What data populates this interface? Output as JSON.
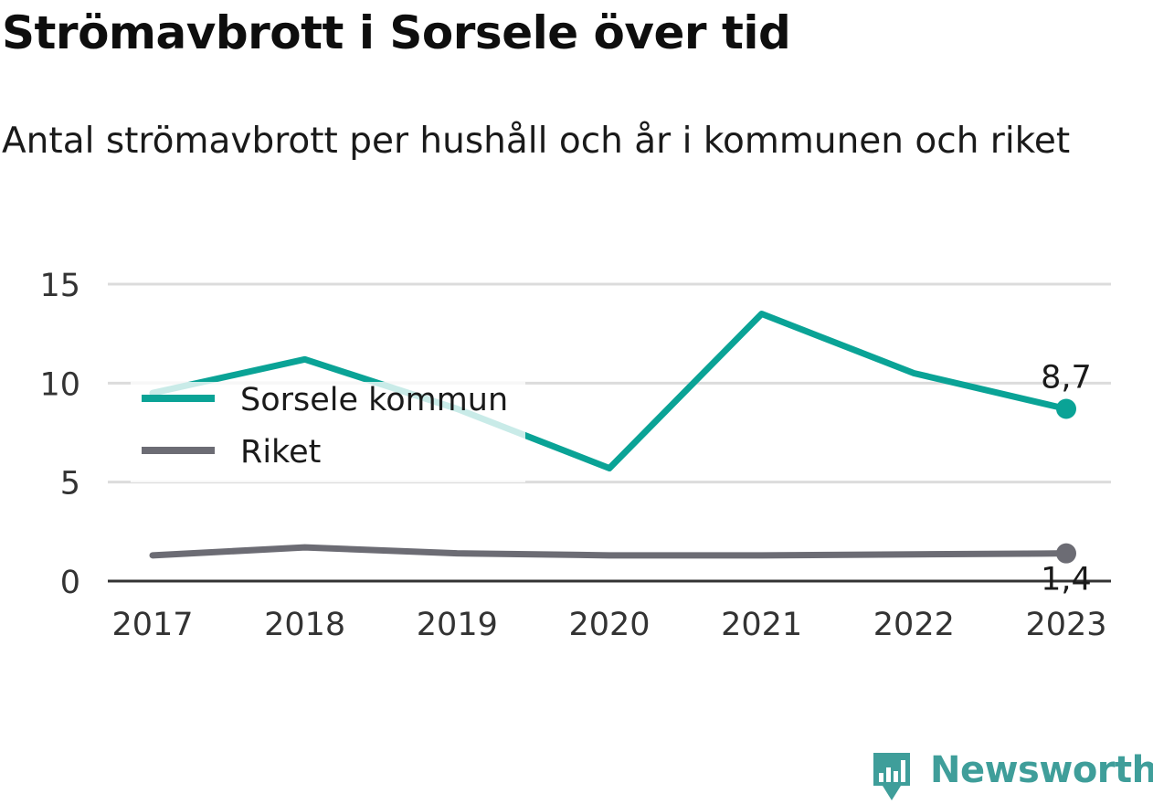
{
  "title": "Strömavbrott i Sorsele över tid",
  "subtitle": "Antal strömavbrott per hushåll och år i kommunen och riket",
  "brand": {
    "name": "Newsworthy",
    "color": "#3f9e9a",
    "icon": "newsworthy-logo-icon"
  },
  "chart_data": {
    "type": "line",
    "x": [
      "2017",
      "2018",
      "2019",
      "2020",
      "2021",
      "2022",
      "2023"
    ],
    "ylim": [
      0,
      15
    ],
    "yticks": [
      "0",
      "5",
      "10",
      "15"
    ],
    "grid": true,
    "legend_position": "top-left",
    "series": [
      {
        "name": "Sorsele kommun",
        "color": "#0aa396",
        "values": [
          9.5,
          11.2,
          8.7,
          5.7,
          13.5,
          10.5,
          8.7
        ],
        "end_label": "8,7"
      },
      {
        "name": "Riket",
        "color": "#6c6c74",
        "values": [
          1.3,
          1.7,
          1.4,
          1.3,
          1.3,
          1.35,
          1.4
        ],
        "end_label": "1,4"
      }
    ]
  }
}
